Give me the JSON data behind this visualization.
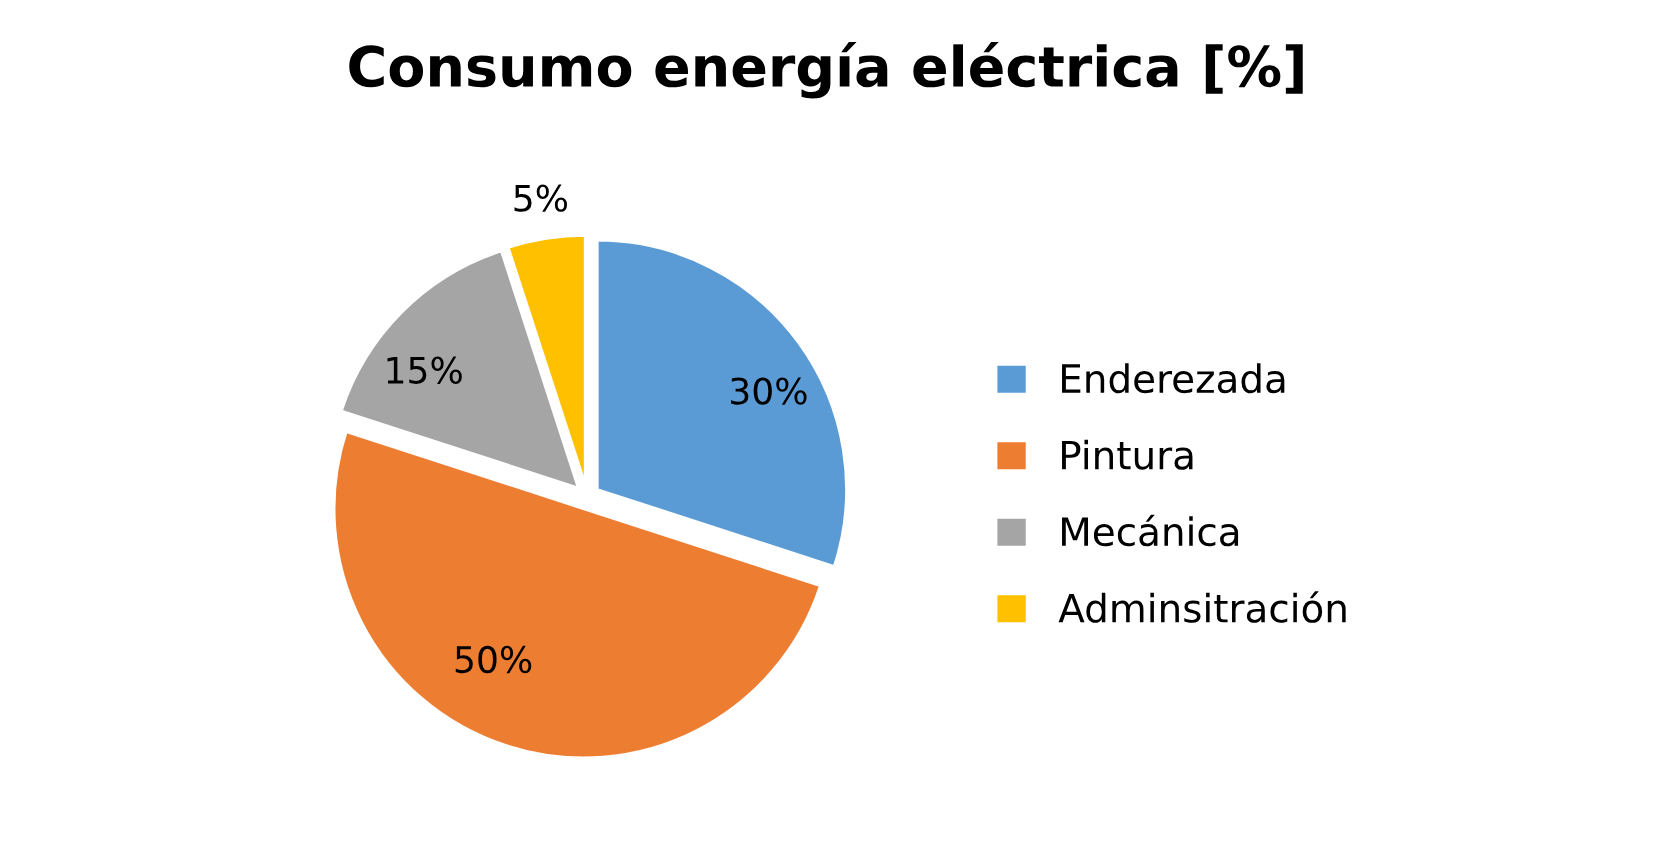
{
  "chart_data": {
    "type": "pie",
    "title": "Consumo energía eléctrica [%]",
    "categories": [
      "Enderezada",
      "Pintura",
      "Mecánica",
      "Adminsitración"
    ],
    "values": [
      30,
      50,
      15,
      5
    ],
    "colors": [
      "#5b9bd5",
      "#ed7d31",
      "#a5a5a5",
      "#ffc000"
    ],
    "value_labels": [
      "30%",
      "50%",
      "15%",
      "5%"
    ],
    "legend": "right"
  }
}
